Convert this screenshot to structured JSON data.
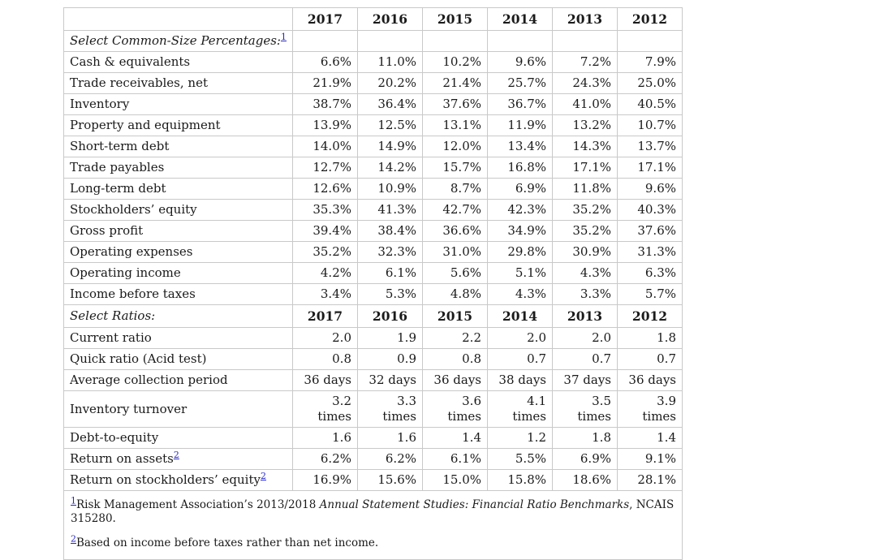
{
  "colors": {
    "link_blue": "#2626c9",
    "text": "#1a1a1a",
    "border_outer": "#a6a6a6",
    "border_inner": "#c9c9c9",
    "background": "#ffffff"
  },
  "table": {
    "years": [
      "2017",
      "2016",
      "2015",
      "2014",
      "2013",
      "2012"
    ],
    "sections": [
      {
        "label": "Select Common-Size Percentages:",
        "sup": "1",
        "show_years": false,
        "rows": [
          {
            "label": "Cash & equivalents",
            "values": [
              "6.6%",
              "11.0%",
              "10.2%",
              "9.6%",
              "7.2%",
              "7.9%"
            ]
          },
          {
            "label": "Trade receivables, net",
            "values": [
              "21.9%",
              "20.2%",
              "21.4%",
              "25.7%",
              "24.3%",
              "25.0%"
            ]
          },
          {
            "label": "Inventory",
            "values": [
              "38.7%",
              "36.4%",
              "37.6%",
              "36.7%",
              "41.0%",
              "40.5%"
            ]
          },
          {
            "label": "Property and equipment",
            "values": [
              "13.9%",
              "12.5%",
              "13.1%",
              "11.9%",
              "13.2%",
              "10.7%"
            ]
          },
          {
            "label": "Short-term debt",
            "values": [
              "14.0%",
              "14.9%",
              "12.0%",
              "13.4%",
              "14.3%",
              "13.7%"
            ]
          },
          {
            "label": "Trade payables",
            "values": [
              "12.7%",
              "14.2%",
              "15.7%",
              "16.8%",
              "17.1%",
              "17.1%"
            ]
          },
          {
            "label": "Long-term debt",
            "values": [
              "12.6%",
              "10.9%",
              "8.7%",
              "6.9%",
              "11.8%",
              "9.6%"
            ]
          },
          {
            "label": "Stockholders’ equity",
            "values": [
              "35.3%",
              "41.3%",
              "42.7%",
              "42.3%",
              "35.2%",
              "40.3%"
            ]
          },
          {
            "label": "Gross profit",
            "values": [
              "39.4%",
              "38.4%",
              "36.6%",
              "34.9%",
              "35.2%",
              "37.6%"
            ]
          },
          {
            "label": "Operating expenses",
            "values": [
              "35.2%",
              "32.3%",
              "31.0%",
              "29.8%",
              "30.9%",
              "31.3%"
            ]
          },
          {
            "label": "Operating income",
            "values": [
              "4.2%",
              "6.1%",
              "5.6%",
              "5.1%",
              "4.3%",
              "6.3%"
            ]
          },
          {
            "label": "Income before taxes",
            "values": [
              "3.4%",
              "5.3%",
              "4.8%",
              "4.3%",
              "3.3%",
              "5.7%"
            ]
          }
        ]
      },
      {
        "label": "Select Ratios:",
        "sup": "",
        "show_years": true,
        "rows": [
          {
            "label": "Current ratio",
            "values": [
              "2.0",
              "1.9",
              "2.2",
              "2.0",
              "2.0",
              "1.8"
            ]
          },
          {
            "label": "Quick ratio (Acid test)",
            "values": [
              "0.8",
              "0.9",
              "0.8",
              "0.7",
              "0.7",
              "0.7"
            ]
          },
          {
            "label": "Average collection period",
            "values": [
              "36 days",
              "32 days",
              "36 days",
              "38 days",
              "37 days",
              "36 days"
            ]
          },
          {
            "label": "Inventory turnover",
            "values": [
              "3.2 times",
              "3.3 times",
              "3.6 times",
              "4.1 times",
              "3.5 times",
              "3.9 times"
            ]
          },
          {
            "label": "Debt-to-equity",
            "values": [
              "1.6",
              "1.6",
              "1.4",
              "1.2",
              "1.8",
              "1.4"
            ]
          },
          {
            "label": "Return on assets",
            "sup": "2",
            "values": [
              "6.2%",
              "6.2%",
              "6.1%",
              "5.5%",
              "6.9%",
              "9.1%"
            ]
          },
          {
            "label": "Return on stockholders’ equity",
            "sup": "2",
            "values": [
              "16.9%",
              "15.6%",
              "15.0%",
              "15.8%",
              "18.6%",
              "28.1%"
            ]
          }
        ]
      }
    ],
    "footnotes": [
      {
        "ref": "1",
        "before": "Risk Management Association’s 2013/2018 ",
        "italic": "Annual Statement Studies: Financial Ratio Benchmarks",
        "after": ", NCAIS 315280."
      },
      {
        "ref": "2",
        "before": "Based on income before taxes rather than net income.",
        "italic": "",
        "after": ""
      }
    ]
  }
}
